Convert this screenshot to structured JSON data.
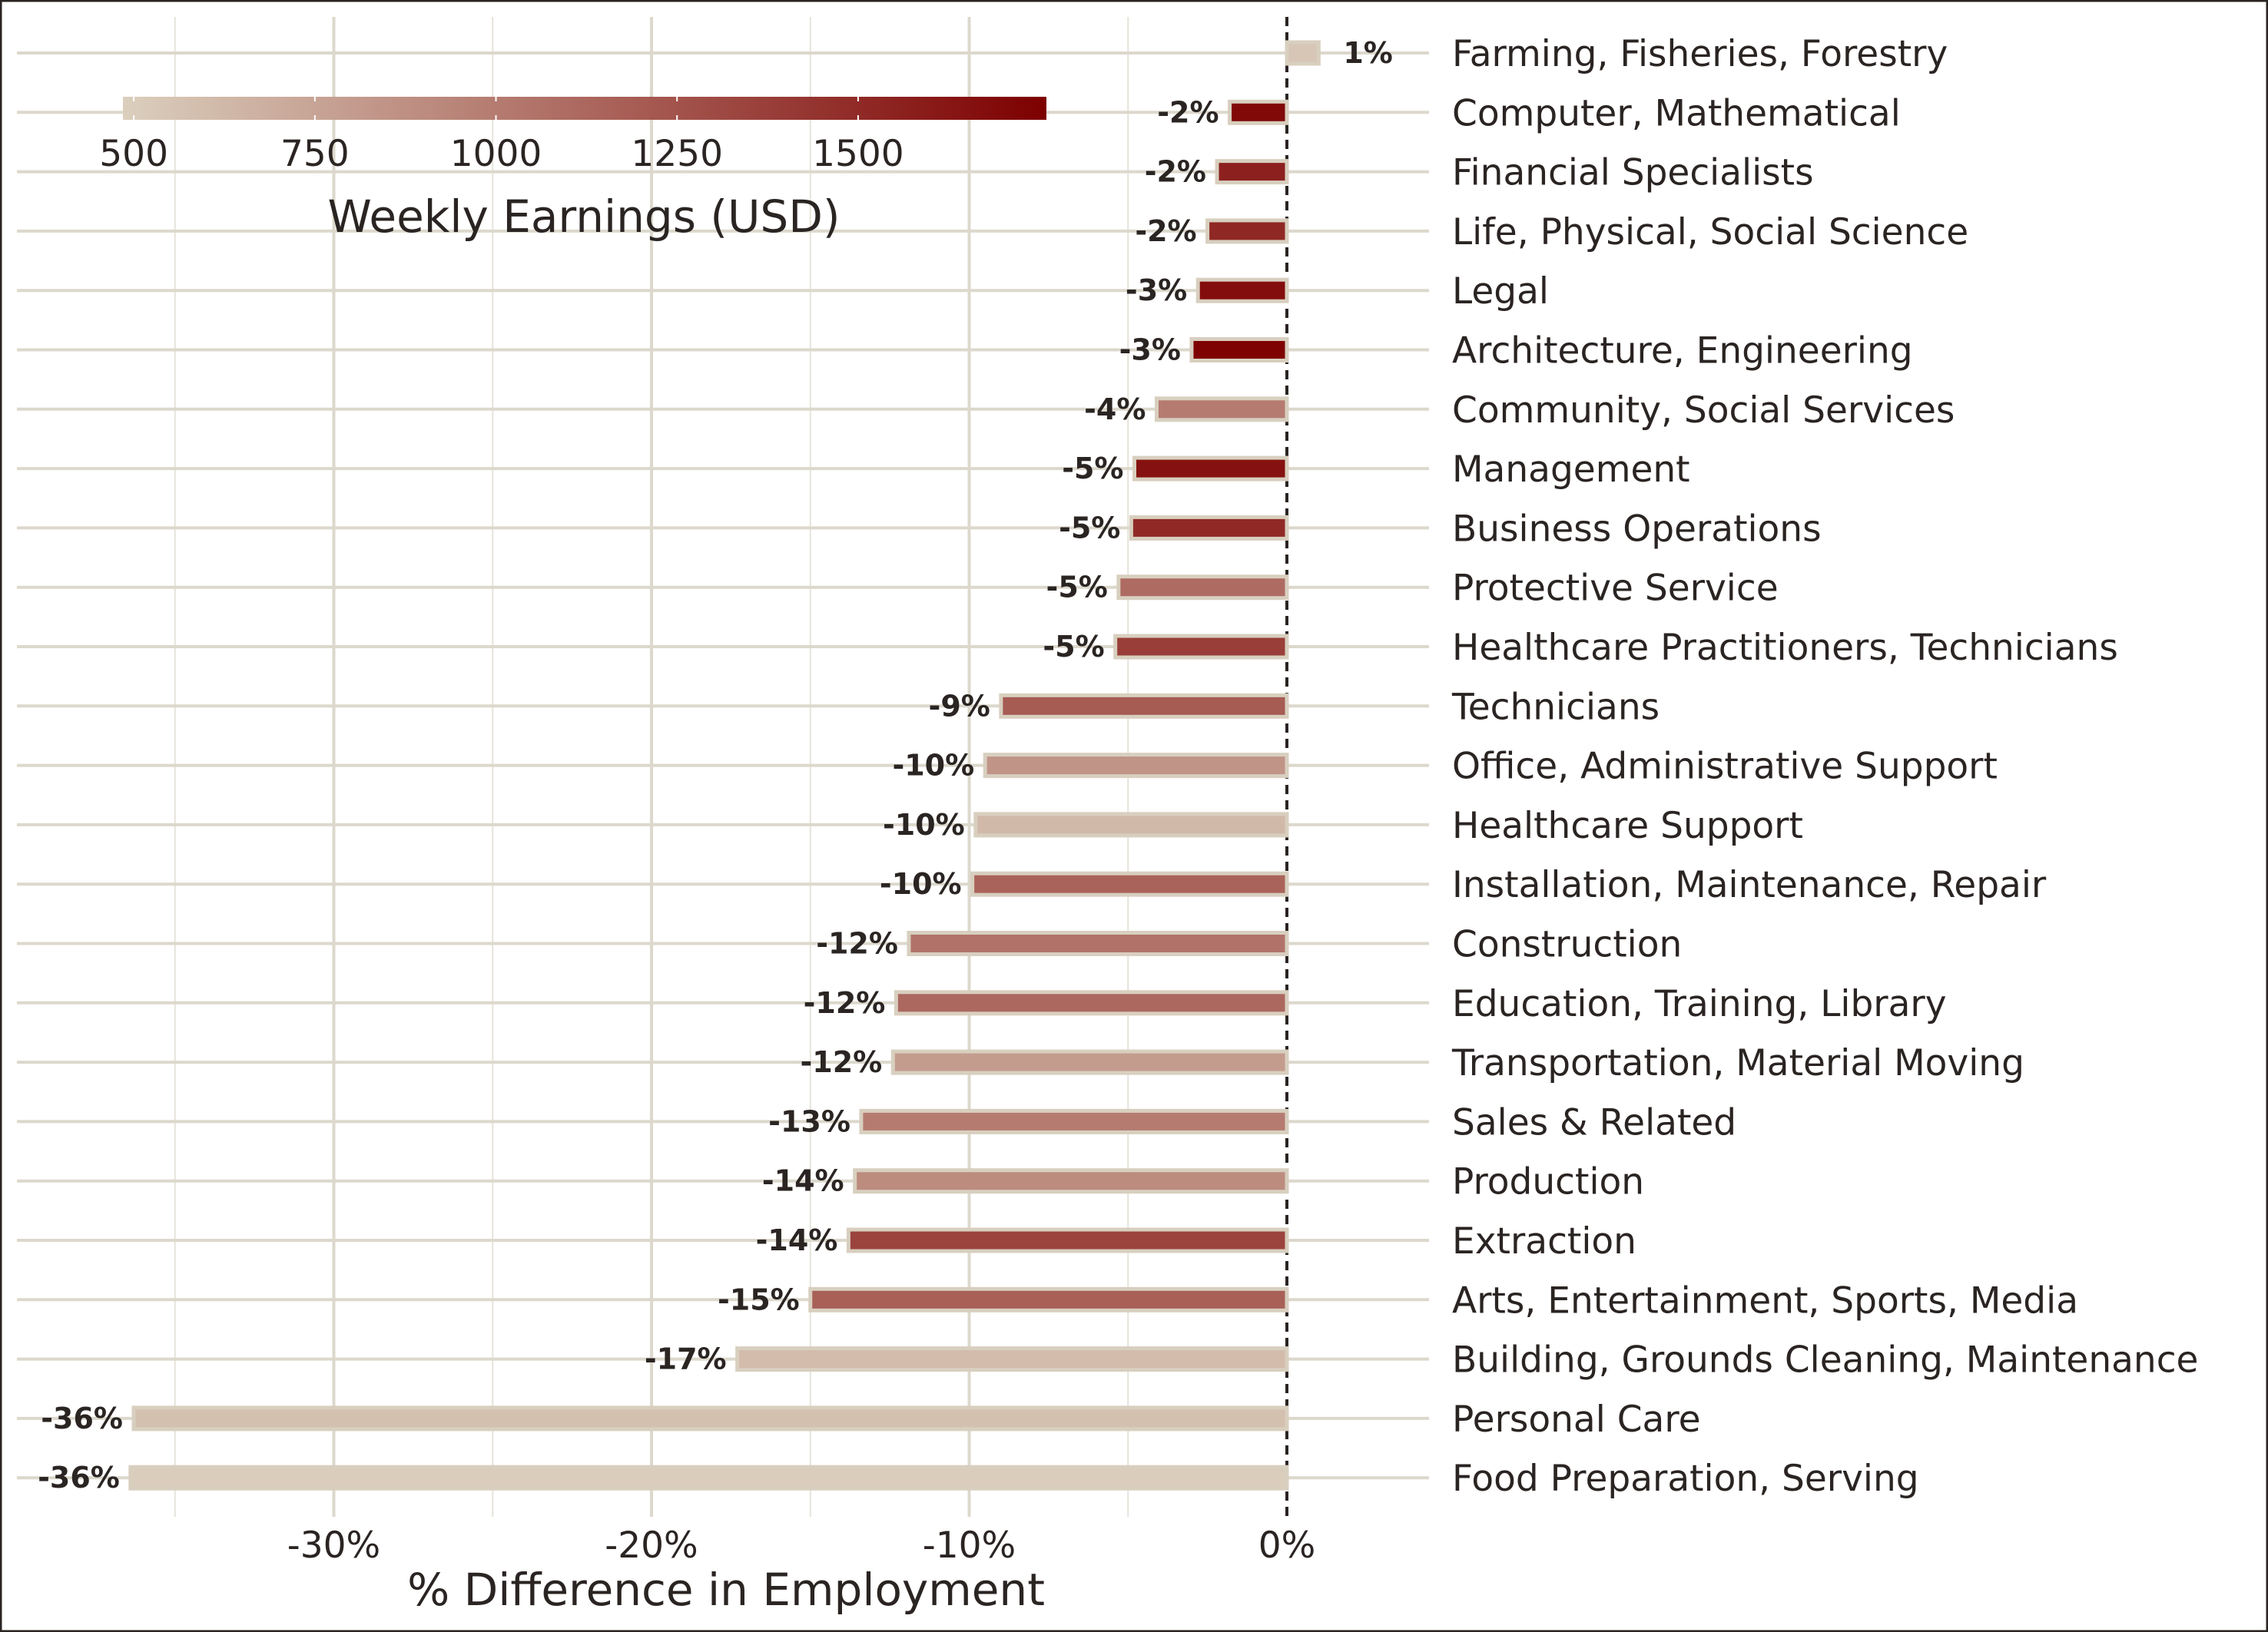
{
  "chart_data": {
    "type": "bar",
    "orientation": "horizontal",
    "xlabel": "% Difference in Employment",
    "x_ticks": [
      "-30%",
      "-20%",
      "-10%",
      "0%"
    ],
    "x_tick_values": [
      -30,
      -20,
      -10,
      0
    ],
    "xlim": [
      -40,
      4.5
    ],
    "grid": true,
    "reference_line": 0,
    "color_scale": {
      "title": "Weekly Earnings (USD)",
      "ticks": [
        "500",
        "750",
        "1000",
        "1250",
        "1500"
      ],
      "tick_values": [
        500,
        750,
        1000,
        1250,
        1500
      ],
      "range": [
        485,
        1760
      ],
      "low_color": "#dbcfbd",
      "high_color": "#7d0000",
      "placement": "top-left"
    },
    "bars": [
      {
        "category": "Farming, Fisheries, Forestry",
        "value": 1,
        "label": "1%",
        "earnings": 540
      },
      {
        "category": "Computer, Mathematical",
        "value": -1.8,
        "label": "-2%",
        "earnings": 1700
      },
      {
        "category": "Financial Specialists",
        "value": -2.2,
        "label": "-2%",
        "earnings": 1560
      },
      {
        "category": "Life, Physical, Social Science",
        "value": -2.5,
        "label": "-2%",
        "earnings": 1520
      },
      {
        "category": "Legal",
        "value": -2.8,
        "label": "-3%",
        "earnings": 1680
      },
      {
        "category": "Architecture, Engineering",
        "value": -3.0,
        "label": "-3%",
        "earnings": 1750
      },
      {
        "category": "Community, Social Services",
        "value": -4.1,
        "label": "-4%",
        "earnings": 1000
      },
      {
        "category": "Management",
        "value": -4.8,
        "label": "-5%",
        "earnings": 1650
      },
      {
        "category": "Business Operations",
        "value": -4.9,
        "label": "-5%",
        "earnings": 1500
      },
      {
        "category": "Protective Service",
        "value": -5.3,
        "label": "-5%",
        "earnings": 1100
      },
      {
        "category": "Healthcare Practitioners, Technicians",
        "value": -5.4,
        "label": "-5%",
        "earnings": 1380
      },
      {
        "category": "Technicians",
        "value": -9.0,
        "label": "-9%",
        "earnings": 1200
      },
      {
        "category": "Office, Administrative Support",
        "value": -9.5,
        "label": "-10%",
        "earnings": 850
      },
      {
        "category": "Healthcare Support",
        "value": -9.8,
        "label": "-10%",
        "earnings": 620
      },
      {
        "category": "Installation, Maintenance, Repair",
        "value": -9.9,
        "label": "-10%",
        "earnings": 1150
      },
      {
        "category": "Construction",
        "value": -11.9,
        "label": "-12%",
        "earnings": 1050
      },
      {
        "category": "Education, Training, Library",
        "value": -12.3,
        "label": "-12%",
        "earnings": 1120
      },
      {
        "category": "Transportation, Material Moving",
        "value": -12.4,
        "label": "-12%",
        "earnings": 800
      },
      {
        "category": "Sales & Related",
        "value": -13.4,
        "label": "-13%",
        "earnings": 1000
      },
      {
        "category": "Production",
        "value": -13.6,
        "label": "-14%",
        "earnings": 900
      },
      {
        "category": "Extraction",
        "value": -13.8,
        "label": "-14%",
        "earnings": 1350
      },
      {
        "category": "Arts, Entertainment, Sports, Media",
        "value": -15.0,
        "label": "-15%",
        "earnings": 1170
      },
      {
        "category": "Building, Grounds Cleaning, Maintenance",
        "value": -17.3,
        "label": "-17%",
        "earnings": 600
      },
      {
        "category": "Personal Care",
        "value": -36.3,
        "label": "-36%",
        "earnings": 580
      },
      {
        "category": "Food Preparation, Serving",
        "value": -36.4,
        "label": "-36%",
        "earnings": 500
      }
    ]
  }
}
